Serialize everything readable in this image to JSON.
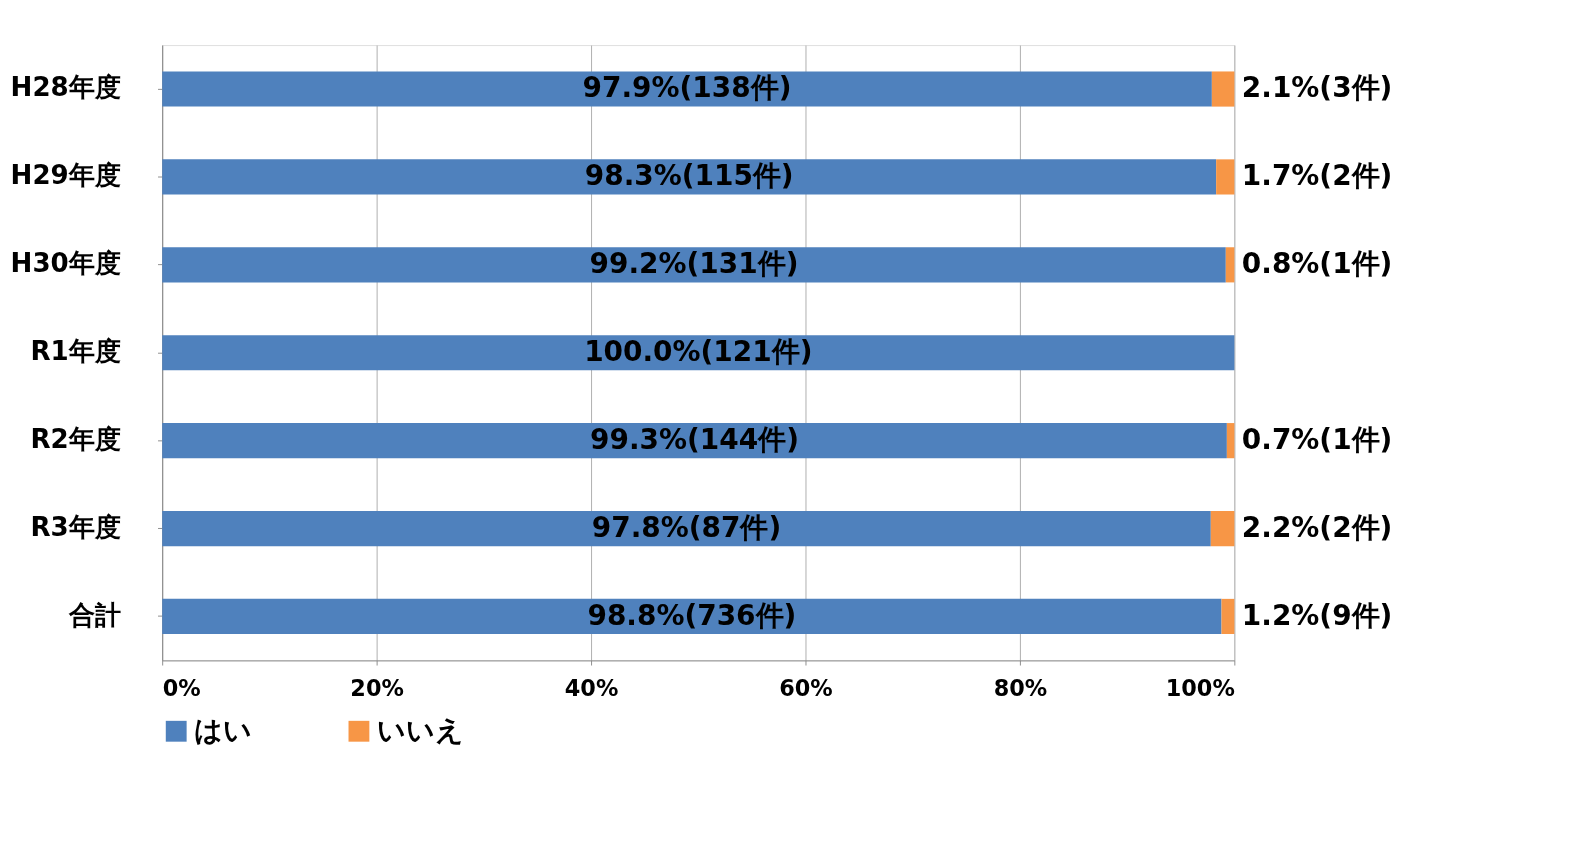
{
  "chart_data": {
    "type": "bar",
    "orientation": "horizontal",
    "stacked": true,
    "categories": [
      "H28年度",
      "H29年度",
      "H30年度",
      "R1年度",
      "R2年度",
      "R3年度",
      "合計"
    ],
    "series": [
      {
        "name": "はい",
        "color": "#4f81bd",
        "values": [
          97.9,
          98.3,
          99.2,
          100.0,
          99.3,
          97.8,
          98.8
        ],
        "value_labels": [
          "97.9%(138件)",
          "98.3%(115件)",
          "99.2%(131件)",
          "100.0%(121件)",
          "99.3%(144件)",
          "97.8%(87件)",
          "98.8%(736件)"
        ]
      },
      {
        "name": "いいえ",
        "color": "#f79646",
        "values": [
          2.1,
          1.7,
          0.8,
          0,
          0.7,
          2.2,
          1.2
        ],
        "value_labels": [
          "2.1%(3件)",
          "1.7%(2件)",
          "0.8%(1件)",
          null,
          "0.7%(1件)",
          "2.2%(2件)",
          "1.2%(9件)"
        ]
      }
    ],
    "xlim": [
      0,
      100
    ],
    "xticks": [
      {
        "value": 0,
        "label": "0%"
      },
      {
        "value": 20,
        "label": "20%"
      },
      {
        "value": 40,
        "label": "40%"
      },
      {
        "value": 60,
        "label": "60%"
      },
      {
        "value": 80,
        "label": "80%"
      },
      {
        "value": 100,
        "label": "100%"
      }
    ],
    "grid": "x",
    "legend": "bottom"
  }
}
